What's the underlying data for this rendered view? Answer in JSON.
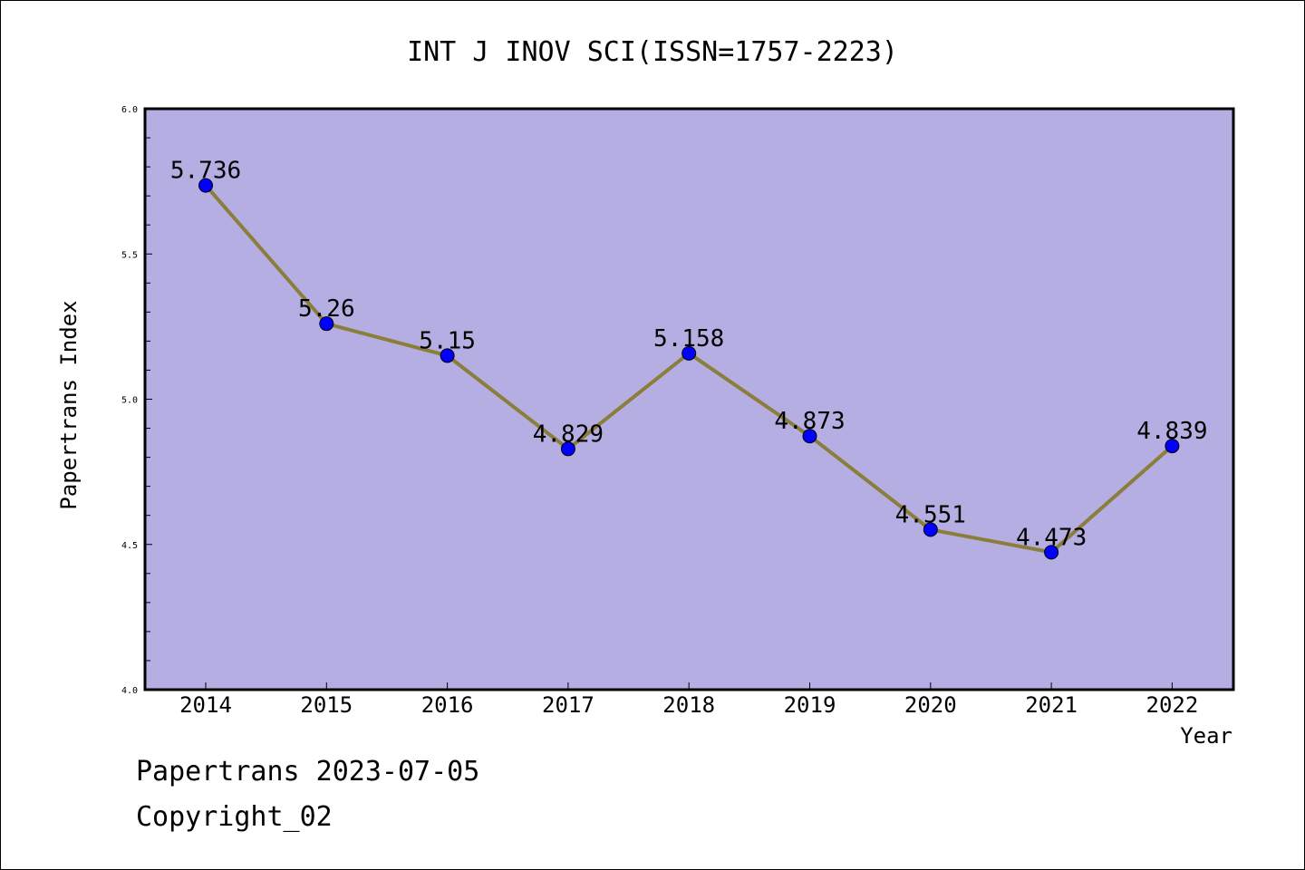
{
  "chart_data": {
    "type": "line",
    "title": "INT J INOV SCI(ISSN=1757-2223)",
    "xlabel": "Year",
    "ylabel": "Papertrans Index",
    "categories": [
      "2014",
      "2015",
      "2016",
      "2017",
      "2018",
      "2019",
      "2020",
      "2021",
      "2022"
    ],
    "series": [
      {
        "values": [
          5.736,
          5.26,
          5.15,
          4.829,
          5.158,
          4.873,
          4.551,
          4.473,
          4.839
        ],
        "labels": [
          "5.736",
          "5.26",
          "5.15",
          "4.829",
          "5.158",
          "4.873",
          "4.551",
          "4.473",
          "4.839"
        ]
      }
    ],
    "ylim": [
      4.0,
      6.0
    ],
    "yticks": [
      "4.0",
      "4.5",
      "5.0",
      "5.5",
      "6.0"
    ],
    "grid": false,
    "colors": {
      "plot_background": "#b4aee2",
      "line": "#8b7d3a",
      "marker": "#0000ff"
    }
  },
  "footer": {
    "line1": "Papertrans 2023-07-05",
    "line2": "Copyright_02"
  }
}
